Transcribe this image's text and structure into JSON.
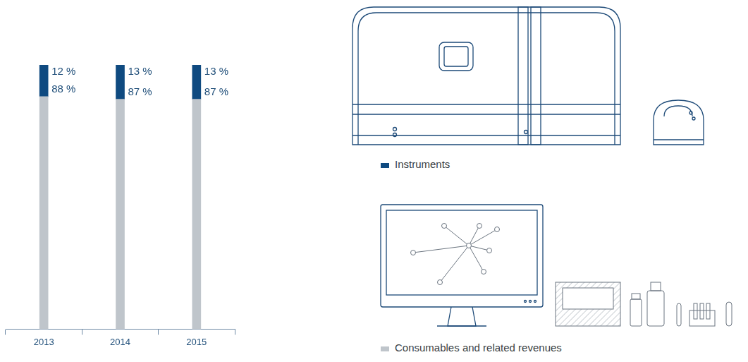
{
  "chart_data": {
    "type": "bar",
    "categories": [
      "2013",
      "2014",
      "2015"
    ],
    "series": [
      {
        "name": "Instruments",
        "color": "#0f4a80",
        "values": [
          12,
          13,
          13
        ],
        "value_labels": [
          "12 %",
          "13 %",
          "13 %"
        ]
      },
      {
        "name": "Consumables and related revenues",
        "color": "#bfc5cb",
        "values": [
          88,
          87,
          87
        ],
        "value_labels": [
          "88 %",
          "87 %",
          "87 %"
        ]
      }
    ],
    "ylim": [
      0,
      100
    ],
    "stacked": true,
    "data_labels": true,
    "tick_labels": "x",
    "grid": false,
    "legend": "right"
  }
}
